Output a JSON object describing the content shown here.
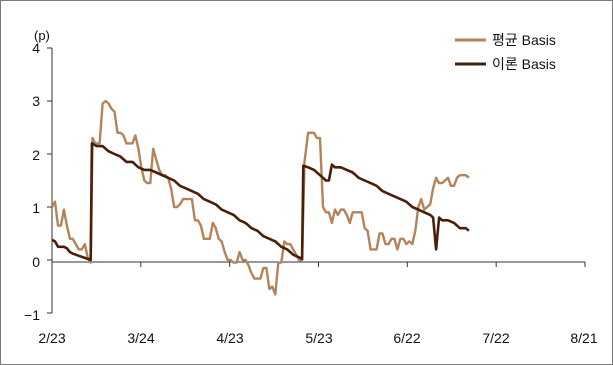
{
  "chart_data": {
    "type": "line",
    "unit_label": "(p)",
    "y_ticks": [
      "4",
      "3",
      "2",
      "1",
      "0",
      "−1"
    ],
    "ylim": [
      -1,
      4
    ],
    "x_ticks": [
      "2/23",
      "3/24",
      "4/23",
      "5/23",
      "6/22",
      "7/22",
      "8/21"
    ],
    "x_range_days": [
      0,
      179
    ],
    "grid": false,
    "legend_position": "top-right",
    "colors": {
      "avg": "#b5835a",
      "theory": "#4a1f0a"
    },
    "series": [
      {
        "name": "평균 Basis",
        "color": "#b5835a",
        "points": [
          [
            0,
            1.0
          ],
          [
            1,
            1.1
          ],
          [
            2,
            0.65
          ],
          [
            3,
            0.65
          ],
          [
            4,
            0.95
          ],
          [
            5,
            0.65
          ],
          [
            6,
            0.4
          ],
          [
            7,
            0.4
          ],
          [
            8,
            0.3
          ],
          [
            9,
            0.2
          ],
          [
            10,
            0.2
          ],
          [
            11,
            0.3
          ],
          [
            12,
            0.05
          ],
          [
            13,
            -0.05
          ],
          [
            13.6,
            2.3
          ],
          [
            14.5,
            2.2
          ],
          [
            16,
            2.2
          ],
          [
            17,
            2.95
          ],
          [
            18,
            3.0
          ],
          [
            19,
            2.95
          ],
          [
            20,
            2.85
          ],
          [
            21,
            2.8
          ],
          [
            22,
            2.4
          ],
          [
            23,
            2.4
          ],
          [
            24,
            2.35
          ],
          [
            25,
            2.2
          ],
          [
            26,
            2.2
          ],
          [
            27,
            2.2
          ],
          [
            28,
            2.35
          ],
          [
            29,
            2.1
          ],
          [
            30,
            1.75
          ],
          [
            31,
            1.5
          ],
          [
            32,
            1.45
          ],
          [
            33,
            1.45
          ],
          [
            34,
            2.1
          ],
          [
            35,
            1.9
          ],
          [
            36,
            1.7
          ],
          [
            37,
            1.6
          ],
          [
            38,
            1.6
          ],
          [
            39,
            1.55
          ],
          [
            40,
            1.35
          ],
          [
            41,
            1.0
          ],
          [
            42,
            1.0
          ],
          [
            43,
            1.05
          ],
          [
            44,
            1.15
          ],
          [
            45,
            1.15
          ],
          [
            46,
            1.15
          ],
          [
            47,
            1.15
          ],
          [
            48,
            0.75
          ],
          [
            49,
            0.75
          ],
          [
            50,
            0.65
          ],
          [
            51,
            0.4
          ],
          [
            52,
            0.4
          ],
          [
            53,
            0.4
          ],
          [
            54,
            0.7
          ],
          [
            55,
            0.6
          ],
          [
            56,
            0.4
          ],
          [
            57,
            0.35
          ],
          [
            58,
            0.15
          ],
          [
            59,
            0.0
          ],
          [
            60,
            0.0
          ],
          [
            61,
            -0.05
          ],
          [
            62,
            -0.05
          ],
          [
            63,
            0.15
          ],
          [
            64,
            0.0
          ],
          [
            65,
            0.0
          ],
          [
            66,
            -0.1
          ],
          [
            67,
            -0.25
          ],
          [
            68,
            -0.35
          ],
          [
            69,
            -0.35
          ],
          [
            70,
            -0.35
          ],
          [
            71,
            -0.15
          ],
          [
            72,
            -0.15
          ],
          [
            73,
            -0.55
          ],
          [
            74,
            -0.5
          ],
          [
            75,
            -0.65
          ],
          [
            76,
            -0.05
          ],
          [
            77,
            -0.05
          ],
          [
            78,
            0.35
          ],
          [
            79,
            0.3
          ],
          [
            80,
            0.3
          ],
          [
            81,
            0.2
          ],
          [
            82,
            0.1
          ],
          [
            83,
            0.0
          ],
          [
            84,
            0.0
          ],
          [
            84.8,
            1.85
          ],
          [
            86,
            2.4
          ],
          [
            87,
            2.4
          ],
          [
            88,
            2.4
          ],
          [
            89,
            2.3
          ],
          [
            90,
            2.3
          ],
          [
            91,
            1.0
          ],
          [
            92,
            0.9
          ],
          [
            93,
            0.9
          ],
          [
            94,
            0.7
          ],
          [
            95,
            0.95
          ],
          [
            96,
            0.85
          ],
          [
            97,
            0.95
          ],
          [
            98,
            0.95
          ],
          [
            99,
            0.85
          ],
          [
            100,
            0.7
          ],
          [
            101,
            0.9
          ],
          [
            102,
            0.9
          ],
          [
            103,
            0.9
          ],
          [
            104,
            0.9
          ],
          [
            105,
            0.6
          ],
          [
            106,
            0.55
          ],
          [
            107,
            0.2
          ],
          [
            108,
            0.2
          ],
          [
            109,
            0.2
          ],
          [
            110,
            0.5
          ],
          [
            111,
            0.5
          ],
          [
            112,
            0.3
          ],
          [
            113,
            0.3
          ],
          [
            114,
            0.4
          ],
          [
            115,
            0.4
          ],
          [
            116,
            0.2
          ],
          [
            117,
            0.4
          ],
          [
            118,
            0.4
          ],
          [
            119,
            0.3
          ],
          [
            120,
            0.35
          ],
          [
            121,
            0.3
          ],
          [
            122,
            0.55
          ],
          [
            123,
            1.0
          ],
          [
            124,
            1.15
          ],
          [
            125,
            0.95
          ],
          [
            126,
            1.0
          ],
          [
            127,
            1.05
          ],
          [
            128,
            1.35
          ],
          [
            129,
            1.55
          ],
          [
            130,
            1.45
          ],
          [
            131,
            1.45
          ],
          [
            132,
            1.5
          ],
          [
            133,
            1.55
          ],
          [
            134,
            1.4
          ],
          [
            135,
            1.4
          ],
          [
            136,
            1.55
          ],
          [
            137,
            1.6
          ],
          [
            138,
            1.6
          ],
          [
            139,
            1.6
          ],
          [
            140,
            1.55
          ]
        ]
      },
      {
        "name": "이론 Basis",
        "color": "#4a1f0a",
        "points": [
          [
            0,
            0.38
          ],
          [
            1,
            0.35
          ],
          [
            2,
            0.25
          ],
          [
            3,
            0.25
          ],
          [
            4,
            0.25
          ],
          [
            5,
            0.22
          ],
          [
            6,
            0.15
          ],
          [
            7,
            0.12
          ],
          [
            8,
            0.1
          ],
          [
            9,
            0.08
          ],
          [
            10,
            0.06
          ],
          [
            11,
            0.04
          ],
          [
            12,
            0.02
          ],
          [
            13,
            0.0
          ],
          [
            13.4,
            2.2
          ],
          [
            15,
            2.15
          ],
          [
            17,
            2.15
          ],
          [
            19,
            2.05
          ],
          [
            21,
            2.0
          ],
          [
            23,
            1.95
          ],
          [
            25,
            1.85
          ],
          [
            27,
            1.85
          ],
          [
            29,
            1.75
          ],
          [
            31,
            1.7
          ],
          [
            33,
            1.7
          ],
          [
            35,
            1.65
          ],
          [
            37,
            1.6
          ],
          [
            39,
            1.55
          ],
          [
            41,
            1.5
          ],
          [
            43,
            1.4
          ],
          [
            45,
            1.35
          ],
          [
            47,
            1.3
          ],
          [
            49,
            1.25
          ],
          [
            51,
            1.15
          ],
          [
            53,
            1.1
          ],
          [
            55,
            1.05
          ],
          [
            57,
            0.95
          ],
          [
            59,
            0.9
          ],
          [
            61,
            0.85
          ],
          [
            63,
            0.75
          ],
          [
            65,
            0.7
          ],
          [
            67,
            0.6
          ],
          [
            69,
            0.55
          ],
          [
            71,
            0.45
          ],
          [
            73,
            0.4
          ],
          [
            75,
            0.35
          ],
          [
            77,
            0.25
          ],
          [
            79,
            0.2
          ],
          [
            81,
            0.1
          ],
          [
            83,
            0.05
          ],
          [
            84,
            0.02
          ],
          [
            84.4,
            1.78
          ],
          [
            86,
            1.75
          ],
          [
            88,
            1.7
          ],
          [
            90,
            1.6
          ],
          [
            91,
            1.55
          ],
          [
            92,
            1.5
          ],
          [
            93,
            1.5
          ],
          [
            94,
            1.8
          ],
          [
            95,
            1.75
          ],
          [
            97,
            1.75
          ],
          [
            99,
            1.7
          ],
          [
            101,
            1.65
          ],
          [
            103,
            1.55
          ],
          [
            105,
            1.5
          ],
          [
            107,
            1.45
          ],
          [
            109,
            1.4
          ],
          [
            111,
            1.3
          ],
          [
            113,
            1.25
          ],
          [
            115,
            1.2
          ],
          [
            117,
            1.15
          ],
          [
            119,
            1.1
          ],
          [
            121,
            1.0
          ],
          [
            123,
            0.95
          ],
          [
            125,
            0.9
          ],
          [
            127,
            0.85
          ],
          [
            128,
            0.8
          ],
          [
            129,
            0.2
          ],
          [
            130,
            0.8
          ],
          [
            131,
            0.75
          ],
          [
            133,
            0.75
          ],
          [
            135,
            0.7
          ],
          [
            137,
            0.6
          ],
          [
            139,
            0.6
          ],
          [
            140,
            0.55
          ]
        ]
      }
    ]
  }
}
